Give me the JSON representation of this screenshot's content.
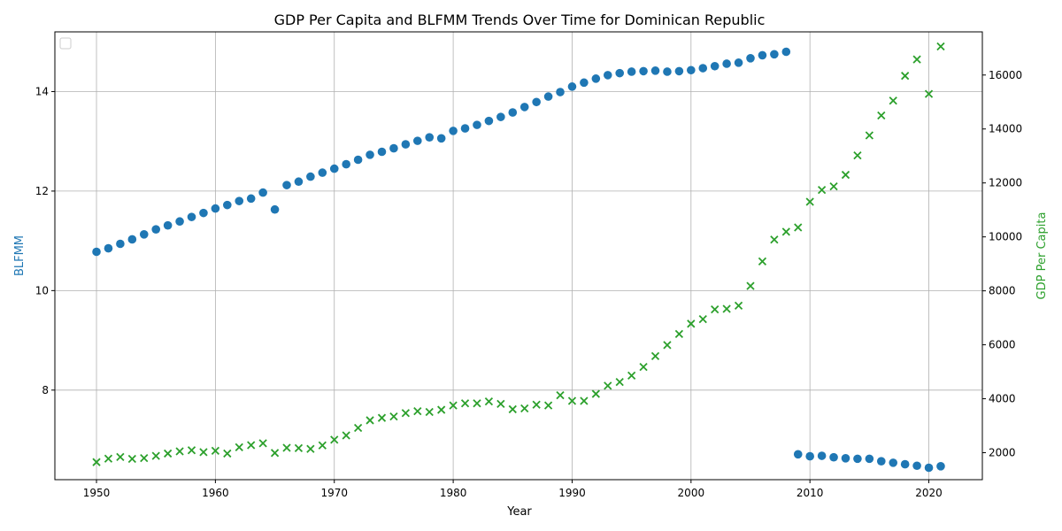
{
  "chart_data": {
    "type": "scatter",
    "title": "GDP Per Capita and BLFMM Trends Over Time for Dominican Republic",
    "xlabel": "Year",
    "ylabel_left": "BLFMM",
    "ylabel_right": "GDP Per Capita",
    "xlim": [
      1946.5,
      2024.5
    ],
    "ylim_left": [
      6.2,
      15.2
    ],
    "ylim_right": [
      1000,
      17600
    ],
    "x_ticks": [
      1950,
      1960,
      1970,
      1980,
      1990,
      2000,
      2010,
      2020
    ],
    "y_ticks_left": [
      8,
      10,
      12,
      14
    ],
    "y_ticks_right": [
      2000,
      4000,
      6000,
      8000,
      10000,
      12000,
      14000,
      16000
    ],
    "grid": true,
    "legend": "upper-left, empty",
    "colors": {
      "blfmm": "#1f77b4",
      "gdp": "#2ca02c",
      "axis_left_label": "#1f77b4",
      "axis_right_label": "#2ca02c"
    },
    "series": [
      {
        "name": "BLFMM",
        "axis": "left",
        "marker": "circle",
        "x": [
          1950,
          1951,
          1952,
          1953,
          1954,
          1955,
          1956,
          1957,
          1958,
          1959,
          1960,
          1961,
          1962,
          1963,
          1964,
          1965,
          1966,
          1967,
          1968,
          1969,
          1970,
          1971,
          1972,
          1973,
          1974,
          1975,
          1976,
          1977,
          1978,
          1979,
          1980,
          1981,
          1982,
          1983,
          1984,
          1985,
          1986,
          1987,
          1988,
          1989,
          1990,
          1991,
          1992,
          1993,
          1994,
          1995,
          1996,
          1997,
          1998,
          1999,
          2000,
          2001,
          2002,
          2003,
          2004,
          2005,
          2006,
          2007,
          2008,
          2009,
          2010,
          2011,
          2012,
          2013,
          2014,
          2015,
          2016,
          2017,
          2018,
          2019,
          2020,
          2021
        ],
        "y": [
          10.78,
          10.85,
          10.94,
          11.03,
          11.13,
          11.23,
          11.31,
          11.39,
          11.48,
          11.56,
          11.65,
          11.72,
          11.8,
          11.85,
          11.97,
          11.63,
          12.12,
          12.19,
          12.29,
          12.37,
          12.45,
          12.54,
          12.63,
          12.73,
          12.79,
          12.86,
          12.94,
          13.01,
          13.08,
          13.06,
          13.21,
          13.26,
          13.33,
          13.41,
          13.49,
          13.58,
          13.69,
          13.79,
          13.9,
          13.99,
          14.1,
          14.18,
          14.26,
          14.33,
          14.37,
          14.4,
          14.41,
          14.42,
          14.4,
          14.41,
          14.43,
          14.47,
          14.51,
          14.56,
          14.58,
          14.67,
          14.73,
          14.75,
          14.8,
          6.71,
          6.67,
          6.68,
          6.65,
          6.63,
          6.62,
          6.62,
          6.57,
          6.54,
          6.51,
          6.48,
          6.44,
          6.47
        ]
      },
      {
        "name": "GDP Per Capita",
        "axis": "right",
        "marker": "x",
        "x": [
          1950,
          1951,
          1952,
          1953,
          1954,
          1955,
          1956,
          1957,
          1958,
          1959,
          1960,
          1961,
          1962,
          1963,
          1964,
          1965,
          1966,
          1967,
          1968,
          1969,
          1970,
          1971,
          1972,
          1973,
          1974,
          1975,
          1976,
          1977,
          1978,
          1979,
          1980,
          1981,
          1982,
          1983,
          1984,
          1985,
          1986,
          1987,
          1988,
          1989,
          1990,
          1991,
          1992,
          1993,
          1994,
          1995,
          1996,
          1997,
          1998,
          1999,
          2000,
          2001,
          2002,
          2003,
          2004,
          2005,
          2006,
          2007,
          2008,
          2009,
          2010,
          2011,
          2012,
          2013,
          2014,
          2015,
          2016,
          2017,
          2018,
          2019,
          2020,
          2021
        ],
        "y": [
          1650,
          1780,
          1840,
          1770,
          1800,
          1880,
          1970,
          2050,
          2090,
          2020,
          2070,
          1970,
          2200,
          2280,
          2350,
          1990,
          2180,
          2170,
          2140,
          2270,
          2480,
          2640,
          2920,
          3200,
          3290,
          3340,
          3470,
          3540,
          3510,
          3590,
          3750,
          3830,
          3830,
          3900,
          3810,
          3610,
          3640,
          3780,
          3750,
          4130,
          3920,
          3920,
          4180,
          4480,
          4620,
          4860,
          5180,
          5580,
          5990,
          6400,
          6780,
          6950,
          7310,
          7330,
          7450,
          8180,
          9090,
          9900,
          10190,
          10350,
          11300,
          11740,
          11870,
          12300,
          13020,
          13760,
          14500,
          15050,
          15970,
          16580,
          15300,
          17060
        ]
      }
    ]
  }
}
